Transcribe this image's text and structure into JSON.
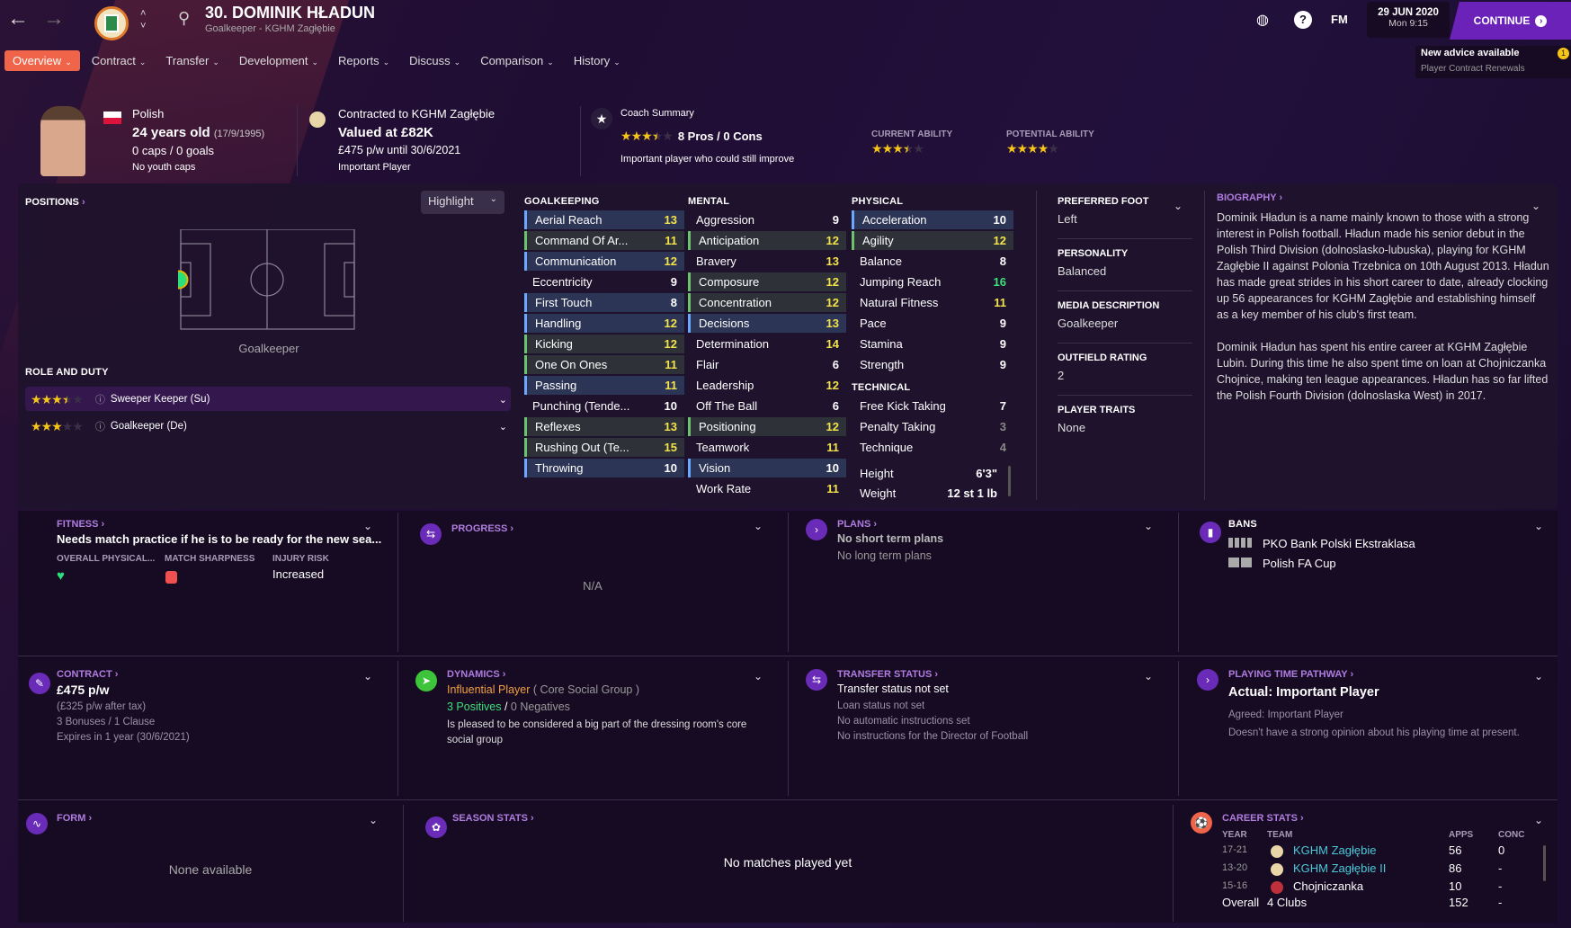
{
  "topbar": {
    "title": "30. DOMINIK HŁADUN",
    "subtitle": "Goalkeeper - KGHM Zagłębie",
    "fm": "FM",
    "date": "29 JUN 2020",
    "time": "Mon 9:15",
    "continue": "CONTINUE",
    "advice_title": "New advice available",
    "advice_sub": "Player Contract Renewals",
    "advice_count": "1"
  },
  "tabs": [
    {
      "label": "Overview",
      "active": true
    },
    {
      "label": "Contract"
    },
    {
      "label": "Transfer"
    },
    {
      "label": "Development"
    },
    {
      "label": "Reports"
    },
    {
      "label": "Discuss"
    },
    {
      "label": "Comparison"
    },
    {
      "label": "History"
    }
  ],
  "header": {
    "nationality": "Polish",
    "age": "24 years old",
    "dob": "(17/9/1995)",
    "caps": "0 caps / 0 goals",
    "youth_caps": "No youth caps",
    "contract": "Contracted to KGHM Zagłębie",
    "value": "Valued at £82K",
    "wage": "£475 p/w until 30/6/2021",
    "status": "Important Player",
    "coach_label": "Coach Summary",
    "coach_stars": 3.5,
    "pros_cons": "8 Pros / 0 Cons",
    "coach_text": "Important player who could still improve",
    "ca_label": "CURRENT ABILITY",
    "ca_stars": 3.5,
    "pa_label": "POTENTIAL ABILITY",
    "pa_stars": 4
  },
  "positions": {
    "title": "POSITIONS",
    "highlight": "Highlight",
    "position": "Goalkeeper",
    "role_title": "ROLE AND DUTY",
    "roles": [
      {
        "name": "Sweeper Keeper (Su)",
        "stars": 3.5
      },
      {
        "name": "Goalkeeper (De)",
        "stars": 3
      }
    ]
  },
  "attributes": {
    "goalkeeping": {
      "title": "GOALKEEPING",
      "rows": [
        [
          "Aerial Reach",
          13,
          "blue"
        ],
        [
          "Command Of Ar...",
          11,
          "green"
        ],
        [
          "Communication",
          12,
          "blue"
        ],
        [
          "Eccentricity",
          9,
          ""
        ],
        [
          "First Touch",
          8,
          "blue"
        ],
        [
          "Handling",
          12,
          "blue"
        ],
        [
          "Kicking",
          12,
          "green"
        ],
        [
          "One On Ones",
          11,
          "green"
        ],
        [
          "Passing",
          11,
          "blue"
        ],
        [
          "Punching (Tende...",
          10,
          ""
        ],
        [
          "Reflexes",
          13,
          "green"
        ],
        [
          "Rushing Out (Te...",
          15,
          "green"
        ],
        [
          "Throwing",
          10,
          "blue"
        ]
      ]
    },
    "mental": {
      "title": "MENTAL",
      "rows": [
        [
          "Aggression",
          9,
          ""
        ],
        [
          "Anticipation",
          12,
          "green"
        ],
        [
          "Bravery",
          13,
          ""
        ],
        [
          "Composure",
          12,
          "green"
        ],
        [
          "Concentration",
          12,
          "green"
        ],
        [
          "Decisions",
          13,
          "blue"
        ],
        [
          "Determination",
          14,
          ""
        ],
        [
          "Flair",
          6,
          ""
        ],
        [
          "Leadership",
          12,
          ""
        ],
        [
          "Off The Ball",
          6,
          ""
        ],
        [
          "Positioning",
          12,
          "green"
        ],
        [
          "Teamwork",
          11,
          ""
        ],
        [
          "Vision",
          10,
          "blue"
        ],
        [
          "Work Rate",
          11,
          ""
        ]
      ]
    },
    "physical": {
      "title": "PHYSICAL",
      "rows": [
        [
          "Acceleration",
          10,
          "blue"
        ],
        [
          "Agility",
          12,
          "green"
        ],
        [
          "Balance",
          8,
          ""
        ],
        [
          "Jumping Reach",
          16,
          ""
        ],
        [
          "Natural Fitness",
          11,
          ""
        ],
        [
          "Pace",
          9,
          ""
        ],
        [
          "Stamina",
          9,
          ""
        ],
        [
          "Strength",
          9,
          ""
        ]
      ]
    },
    "technical": {
      "title": "TECHNICAL",
      "rows": [
        [
          "Free Kick Taking",
          7,
          ""
        ],
        [
          "Penalty Taking",
          3,
          ""
        ],
        [
          "Technique",
          4,
          ""
        ]
      ]
    },
    "height_label": "Height",
    "height": "6'3\"",
    "weight_label": "Weight",
    "weight": "12 st 1 lb"
  },
  "info": [
    {
      "label": "PREFERRED FOOT",
      "value": "Left"
    },
    {
      "label": "PERSONALITY",
      "value": "Balanced"
    },
    {
      "label": "MEDIA DESCRIPTION",
      "value": "Goalkeeper"
    },
    {
      "label": "OUTFIELD RATING",
      "value": "2"
    },
    {
      "label": "PLAYER TRAITS",
      "value": "None"
    }
  ],
  "biography": {
    "title": "BIOGRAPHY",
    "paragraphs": [
      "Dominik Hładun is a name mainly known to those with a strong interest in Polish football. Hładun made his senior debut in the Polish Third Division (dolnoslasko-lubuska), playing for KGHM Zagłębie II against Polonia Trzebnica on 10th August 2013. Hładun has made great strides in his short career to date, already clocking up 56 appearances for KGHM Zagłębie and establishing himself as a key member of his club's first team.",
      "Dominik Hładun has spent his entire career at KGHM Zagłębie Lubin. During this time he also spent time on loan at Chojniczanka Chojnice, making ten league appearances. Hładun has so far lifted the Polish Fourth Division (dolnoslaska West) in 2017."
    ]
  },
  "fitness": {
    "title": "FITNESS",
    "headline": "Needs match practice if he is to be ready for the new sea...",
    "col1": "OVERALL PHYSICAL...",
    "col2": "MATCH SHARPNESS",
    "col3": "INJURY RISK",
    "injury": "Increased"
  },
  "progress": {
    "title": "PROGRESS",
    "value": "N/A"
  },
  "plans": {
    "title": "PLANS",
    "short": "No short term plans",
    "long": "No long term plans"
  },
  "bans": {
    "title": "BANS",
    "items": [
      "PKO Bank Polski Ekstraklasa",
      "Polish FA Cup"
    ]
  },
  "contract": {
    "title": "CONTRACT",
    "wage": "£475 p/w",
    "after_tax": "(£325 p/w after tax)",
    "bonuses": "3 Bonuses / 1 Clause",
    "expires": "Expires in 1 year (30/6/2021)"
  },
  "dynamics": {
    "title": "DYNAMICS",
    "role": "Influential Player",
    "group": "( Core Social Group )",
    "positives": "3 Positives",
    "sep": "/",
    "negatives": "0 Negatives",
    "text": "Is pleased to be considered a big part of the dressing room's core social group"
  },
  "transfer": {
    "title": "TRANSFER STATUS",
    "status": "Transfer status not set",
    "loan": "Loan status not set",
    "auto": "No automatic instructions set",
    "dof": "No instructions for the Director of Football"
  },
  "pathway": {
    "title": "PLAYING TIME PATHWAY",
    "actual": "Actual: Important Player",
    "agreed": "Agreed:  Important Player",
    "opinion": "Doesn't have a strong opinion about his playing time at present."
  },
  "form": {
    "title": "FORM",
    "value": "None available"
  },
  "season": {
    "title": "SEASON STATS",
    "value": "No matches played yet"
  },
  "career": {
    "title": "CAREER STATS",
    "headers": [
      "YEAR",
      "TEAM",
      "APPS",
      "CONC"
    ],
    "rows": [
      [
        "17-21",
        "KGHM Zagłębie",
        "56",
        "0"
      ],
      [
        "13-20",
        "KGHM Zagłębie II",
        "86",
        "-"
      ],
      [
        "15-16",
        "Chojniczanka",
        "10",
        "-"
      ]
    ],
    "overall": [
      "Overall",
      "4 Clubs",
      "152",
      "-"
    ]
  },
  "colors": {
    "accent": "#f0654a",
    "continue": "#6a22b8",
    "link": "#b07ce0",
    "key_blue": "#6aa8ff",
    "key_green": "#6bc46b",
    "value_yellow": "#f3e34a",
    "value_green": "#3ee07a"
  }
}
